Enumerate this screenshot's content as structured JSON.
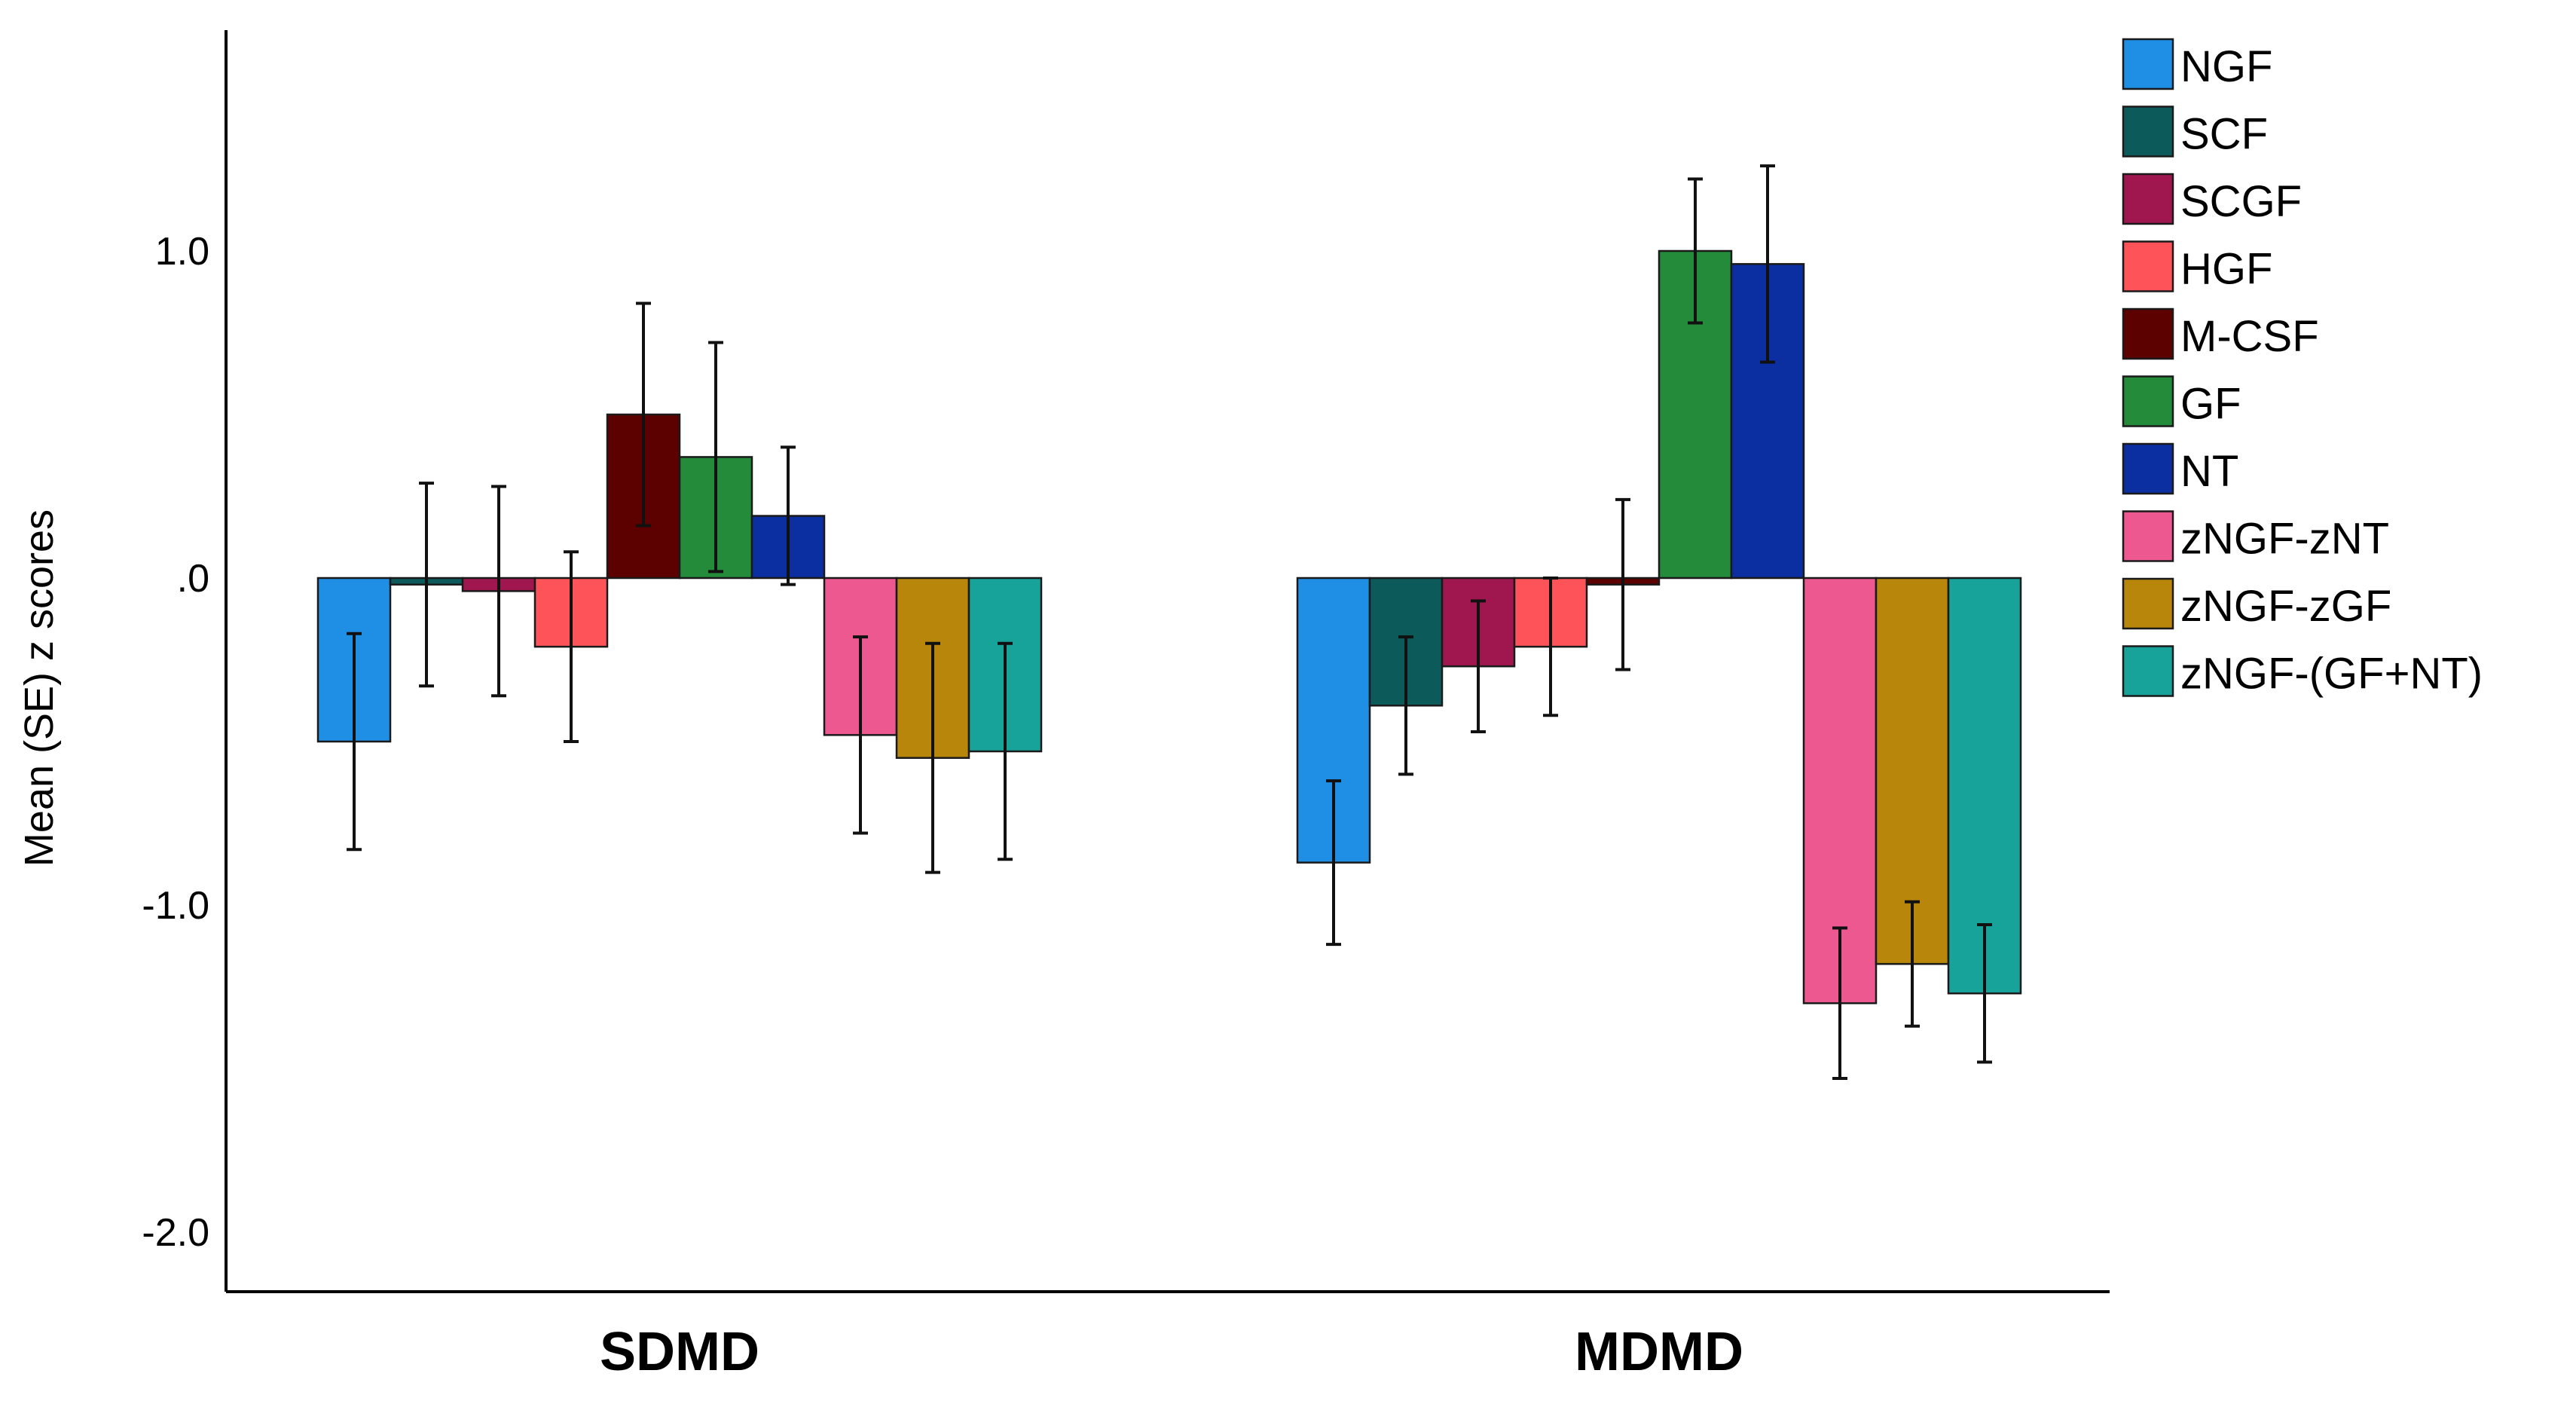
{
  "chart_data": {
    "type": "bar",
    "title": "",
    "xlabel": "",
    "ylabel": "Mean (SE) z scores",
    "ylim": [
      -2.2,
      1.75
    ],
    "yticks": [
      1.0,
      0.0,
      -1.0,
      -2.0
    ],
    "ytick_labels": [
      "1.0",
      ".0",
      "-1.0",
      "-2.0"
    ],
    "grid": false,
    "legend_position": "right",
    "categories": [
      "SDMD",
      "MDMD"
    ],
    "series": [
      {
        "name": "NGF",
        "color": "#1f8fe6",
        "values": [
          -0.5,
          -0.87
        ],
        "se": [
          0.33,
          0.25
        ]
      },
      {
        "name": "SCF",
        "color": "#0d5a5a",
        "values": [
          -0.02,
          -0.39
        ],
        "se": [
          0.31,
          0.21
        ]
      },
      {
        "name": "SCGF",
        "color": "#a0174f",
        "values": [
          -0.04,
          -0.27
        ],
        "se": [
          0.32,
          0.2
        ]
      },
      {
        "name": "HGF",
        "color": "#fe5459",
        "values": [
          -0.21,
          -0.21
        ],
        "se": [
          0.29,
          0.21
        ]
      },
      {
        "name": "M-CSF",
        "color": "#5c0000",
        "values": [
          0.5,
          -0.02
        ],
        "se": [
          0.34,
          0.26
        ]
      },
      {
        "name": "GF",
        "color": "#238b3a",
        "values": [
          0.37,
          1.0
        ],
        "se": [
          0.35,
          0.22
        ]
      },
      {
        "name": "NT",
        "color": "#0b2fa0",
        "values": [
          0.19,
          0.96
        ],
        "se": [
          0.21,
          0.3
        ]
      },
      {
        "name": "zNGF-zNT",
        "color": "#ee5890",
        "values": [
          -0.48,
          -1.3
        ],
        "se": [
          0.3,
          0.23
        ]
      },
      {
        "name": "zNGF-zGF",
        "color": "#b8860b",
        "values": [
          -0.55,
          -1.18
        ],
        "se": [
          0.35,
          0.19
        ]
      },
      {
        "name": "zNGF-(GF+NT)",
        "color": "#17a29a",
        "values": [
          -0.53,
          -1.27
        ],
        "se": [
          0.33,
          0.21
        ]
      }
    ]
  }
}
